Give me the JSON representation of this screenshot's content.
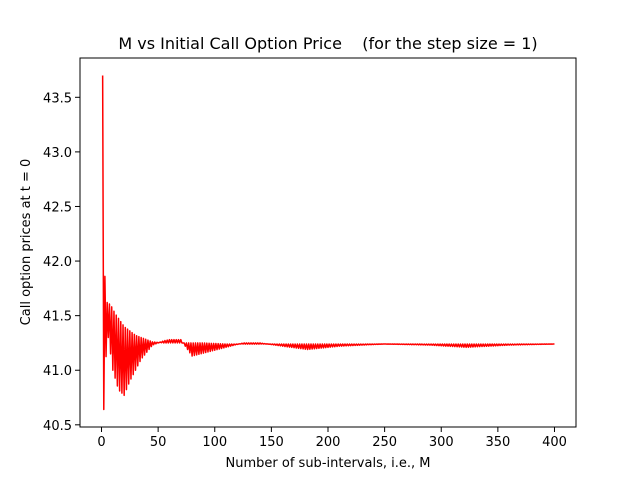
{
  "chart_data": {
    "type": "line",
    "title": "M vs Initial Call Option Price    (for the step size = 1)",
    "xlabel": "Number of sub-intervals, i.e., M",
    "ylabel": "Call option prices at t = 0",
    "xlim": [
      -19,
      419
    ],
    "ylim": [
      40.48,
      43.86
    ],
    "xticks": [
      0,
      50,
      100,
      150,
      200,
      250,
      300,
      350,
      400
    ],
    "xtick_labels": [
      "0",
      "50",
      "100",
      "150",
      "200",
      "250",
      "300",
      "350",
      "400"
    ],
    "yticks": [
      40.5,
      41.0,
      41.5,
      42.0,
      42.5,
      43.0,
      43.5
    ],
    "ytick_labels": [
      "40.5",
      "41.0",
      "41.5",
      "42.0",
      "42.5",
      "43.0",
      "43.5"
    ],
    "grid": false,
    "series": [
      {
        "color": "#ff0000",
        "note_shape": "binomial price oscillating between two envelopes converging to about 41.24",
        "x_range": [
          1,
          400
        ],
        "converged_value": 41.24,
        "odd_envelope": [
          [
            1,
            43.7
          ],
          [
            2,
            42.2
          ],
          [
            3,
            41.86
          ],
          [
            5,
            41.62
          ],
          [
            8,
            41.6
          ],
          [
            12,
            41.52
          ],
          [
            20,
            41.4
          ],
          [
            30,
            41.32
          ],
          [
            45,
            41.26
          ],
          [
            55,
            41.25
          ],
          [
            70,
            41.25
          ],
          [
            90,
            41.25
          ],
          [
            110,
            41.24
          ],
          [
            130,
            41.24
          ],
          [
            180,
            41.24
          ],
          [
            250,
            41.24
          ],
          [
            320,
            41.24
          ],
          [
            400,
            41.24
          ]
        ],
        "even_envelope": [
          [
            1,
            40.63
          ],
          [
            2,
            40.64
          ],
          [
            3,
            40.9
          ],
          [
            5,
            41.35
          ],
          [
            6,
            41.3
          ],
          [
            10,
            41.0
          ],
          [
            15,
            40.82
          ],
          [
            20,
            40.77
          ],
          [
            25,
            40.9
          ],
          [
            35,
            41.1
          ],
          [
            45,
            41.23
          ],
          [
            55,
            41.27
          ],
          [
            60,
            41.28
          ],
          [
            70,
            41.28
          ],
          [
            80,
            41.13
          ],
          [
            95,
            41.17
          ],
          [
            110,
            41.21
          ],
          [
            125,
            41.25
          ],
          [
            140,
            41.25
          ],
          [
            160,
            41.22
          ],
          [
            182,
            41.19
          ],
          [
            210,
            41.22
          ],
          [
            250,
            41.24
          ],
          [
            290,
            41.23
          ],
          [
            322,
            41.21
          ],
          [
            360,
            41.23
          ],
          [
            400,
            41.24
          ]
        ]
      }
    ]
  }
}
